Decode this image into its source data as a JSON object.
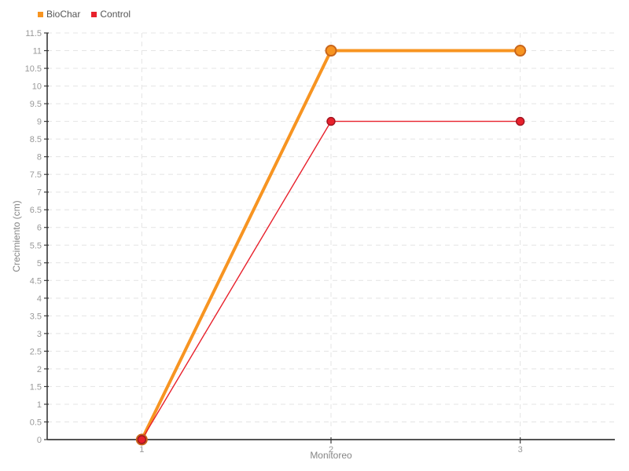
{
  "chart_data": {
    "type": "line",
    "title": "",
    "xlabel": "Monitoreo",
    "ylabel": "Crecimiento (cm)",
    "categories": [
      "1",
      "2",
      "3"
    ],
    "series": [
      {
        "name": "BioChar",
        "values": [
          0,
          11,
          11
        ],
        "color": "#f79421",
        "marker_border": "#c9661b",
        "marker_border_width": 2,
        "marker_radius": 6.5,
        "line_width": 4
      },
      {
        "name": "Control",
        "values": [
          0,
          9,
          9
        ],
        "color": "#e8212c",
        "marker_border": "#9e1420",
        "marker_border_width": 1.4,
        "marker_radius": 5,
        "line_width": 1.4
      }
    ],
    "y_axis": {
      "min": 0,
      "max": 11.5,
      "step": 0.5
    },
    "grid": {
      "horizontal": "dashed",
      "vertical": "dashed"
    },
    "legend_position": "top-left",
    "background": "#ffffff"
  }
}
